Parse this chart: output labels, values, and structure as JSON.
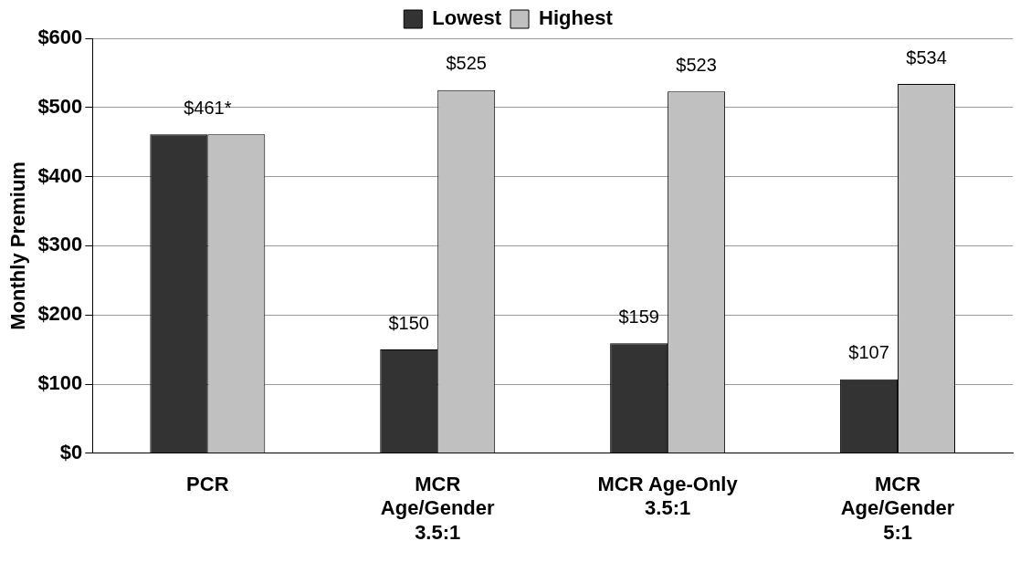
{
  "chart_data": {
    "type": "bar",
    "ylabel": "Monthly Premium",
    "categories": [
      "PCR",
      "MCR\nAge/Gender\n3.5:1",
      "MCR Age-Only\n3.5:1",
      "MCR\nAge/Gender\n5:1"
    ],
    "series": [
      {
        "name": "Lowest",
        "color": "#333333",
        "values": [
          461,
          150,
          159,
          107
        ],
        "value_labels": [
          "$461*",
          "$150",
          "$159",
          "$107"
        ]
      },
      {
        "name": "Highest",
        "color": "#c0c0c0",
        "values": [
          461,
          525,
          523,
          534
        ],
        "value_labels": [
          null,
          "$525",
          "$523",
          "$534"
        ]
      }
    ],
    "ylim": [
      0,
      600
    ],
    "yticks": [
      {
        "value": 0,
        "label": "$0"
      },
      {
        "value": 100,
        "label": "$100"
      },
      {
        "value": 200,
        "label": "$200"
      },
      {
        "value": 300,
        "label": "$300"
      },
      {
        "value": 400,
        "label": "$400"
      },
      {
        "value": 500,
        "label": "$500"
      },
      {
        "value": 600,
        "label": "$600"
      }
    ],
    "grid": "y",
    "legend": "top"
  }
}
